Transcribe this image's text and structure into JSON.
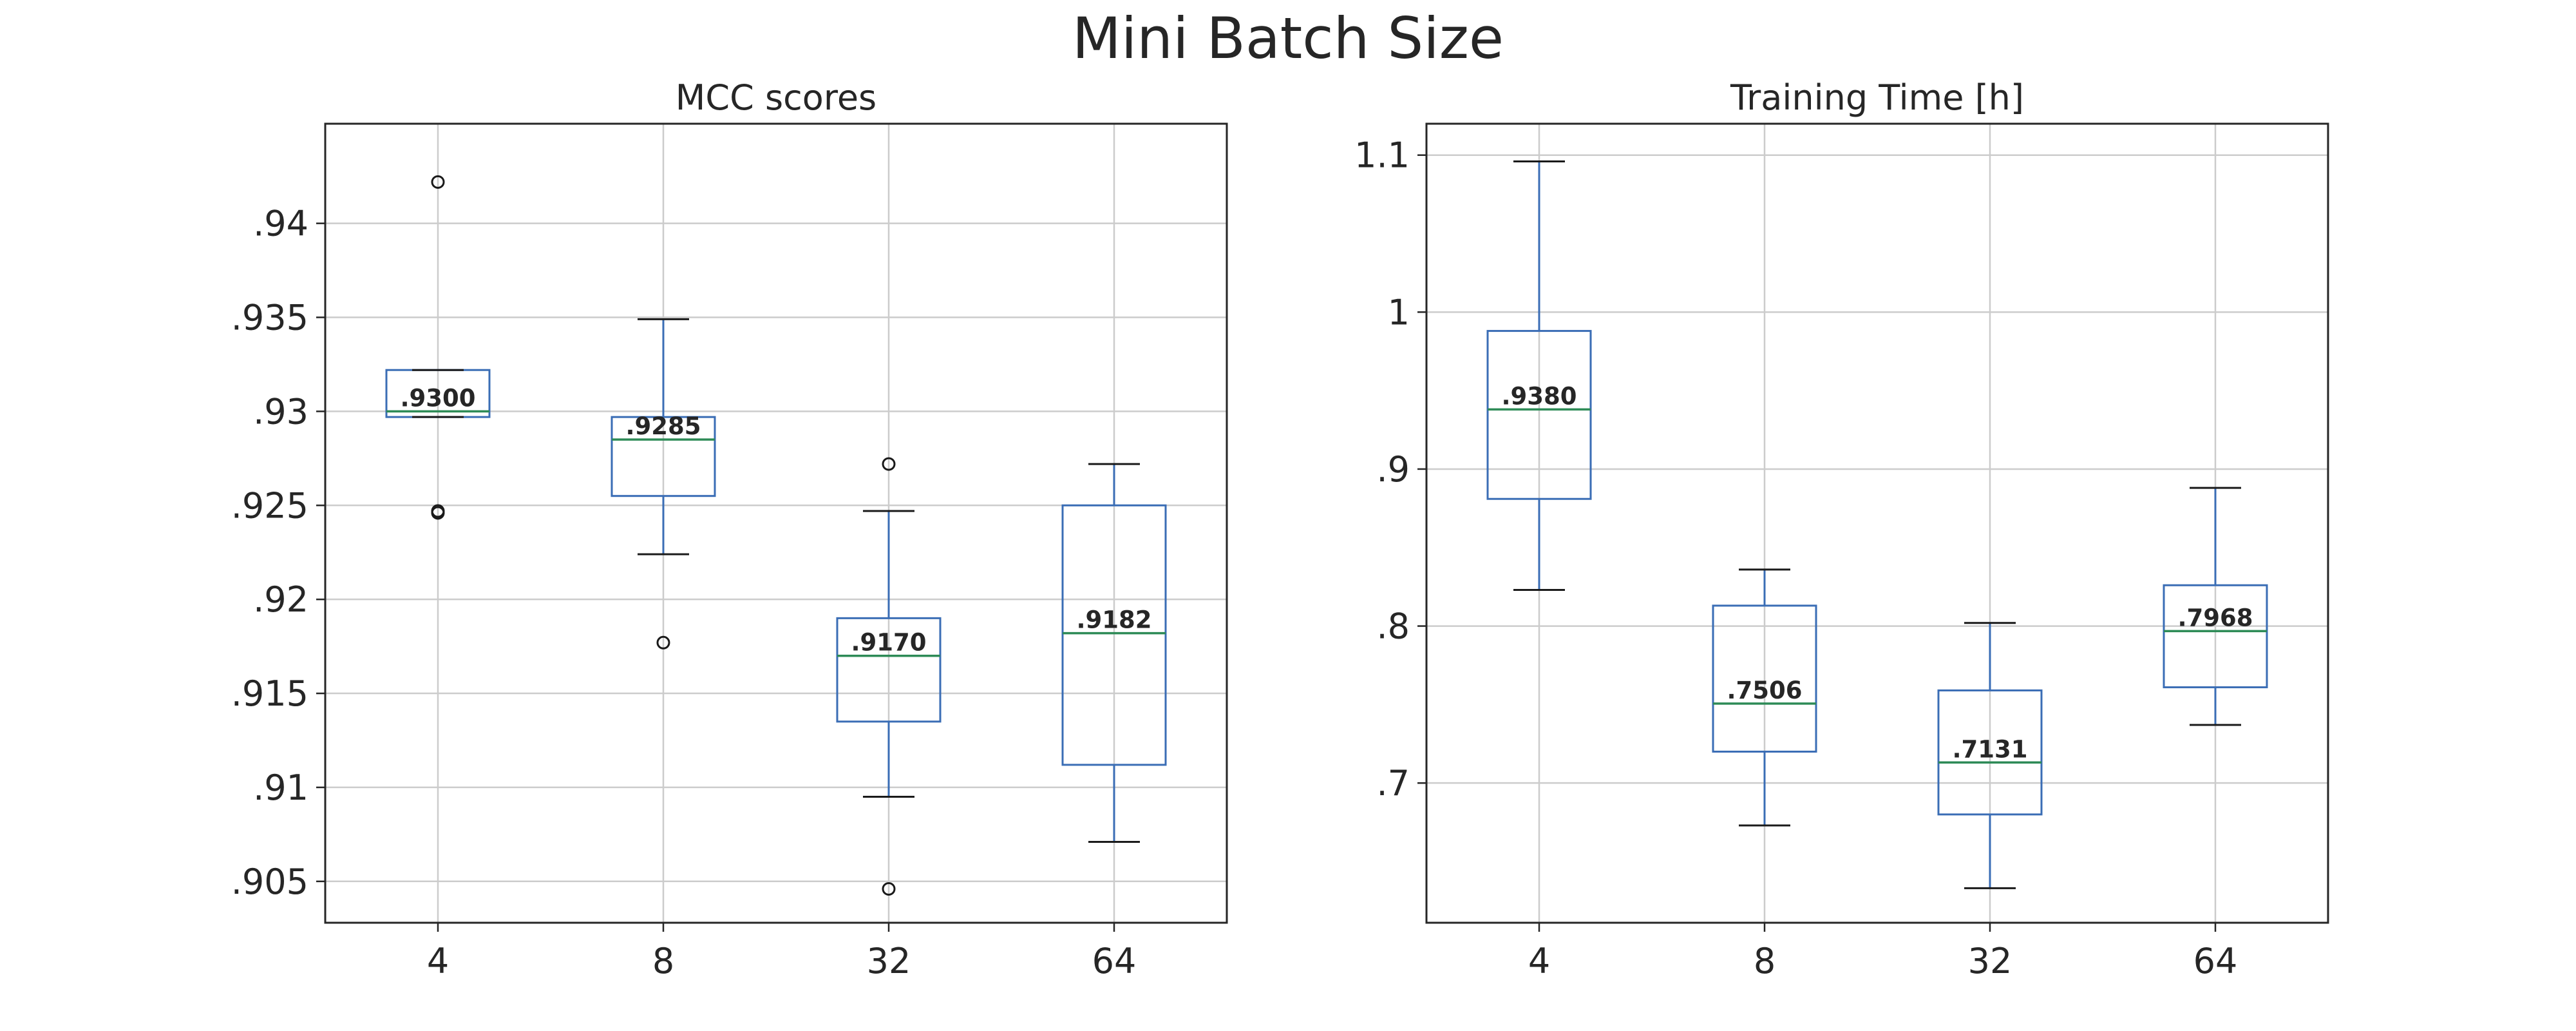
{
  "figure": {
    "title": "Mini Batch Size"
  },
  "chart_data": [
    {
      "type": "box",
      "title": "MCC scores",
      "xlabel": "",
      "ylabel": "",
      "categories": [
        "4",
        "8",
        "32",
        "64"
      ],
      "ylim": [
        0.9028,
        0.9453
      ],
      "yticks": [
        0.905,
        0.91,
        0.915,
        0.92,
        0.925,
        0.93,
        0.935,
        0.94
      ],
      "ytick_labels": [
        ".905",
        ".91",
        ".915",
        ".92",
        ".925",
        ".93",
        ".935",
        ".94"
      ],
      "grid": true,
      "boxes": [
        {
          "category": "4",
          "whisker_low": 0.9297,
          "q1": 0.9297,
          "median": 0.93,
          "q3": 0.9322,
          "whisker_high": 0.9322,
          "median_label": ".9300",
          "fliers": [
            0.9422,
            0.9247,
            0.9246
          ]
        },
        {
          "category": "8",
          "whisker_low": 0.9224,
          "q1": 0.9255,
          "median": 0.9285,
          "q3": 0.9297,
          "whisker_high": 0.9349,
          "median_label": ".9285",
          "fliers": [
            0.9177
          ]
        },
        {
          "category": "32",
          "whisker_low": 0.9095,
          "q1": 0.9135,
          "median": 0.917,
          "q3": 0.919,
          "whisker_high": 0.9247,
          "median_label": ".9170",
          "fliers": [
            0.9272,
            0.9046
          ]
        },
        {
          "category": "64",
          "whisker_low": 0.9071,
          "q1": 0.9112,
          "median": 0.9182,
          "q3": 0.925,
          "whisker_high": 0.9272,
          "median_label": ".9182",
          "fliers": []
        }
      ]
    },
    {
      "type": "box",
      "title": "Training Time [h]",
      "xlabel": "",
      "ylabel": "",
      "categories": [
        "4",
        "8",
        "32",
        "64"
      ],
      "ylim": [
        0.611,
        1.12
      ],
      "yticks": [
        0.7,
        0.8,
        0.9,
        1.0,
        1.1
      ],
      "ytick_labels": [
        ".7",
        ".8",
        ".9",
        "1",
        "1.1"
      ],
      "grid": true,
      "boxes": [
        {
          "category": "4",
          "whisker_low": 0.823,
          "q1": 0.881,
          "median": 0.938,
          "q3": 0.988,
          "whisker_high": 1.096,
          "median_label": ".9380",
          "fliers": []
        },
        {
          "category": "8",
          "whisker_low": 0.673,
          "q1": 0.72,
          "median": 0.7506,
          "q3": 0.813,
          "whisker_high": 0.836,
          "median_label": ".7506",
          "fliers": []
        },
        {
          "category": "32",
          "whisker_low": 0.633,
          "q1": 0.68,
          "median": 0.7131,
          "q3": 0.759,
          "whisker_high": 0.802,
          "median_label": ".7131",
          "fliers": []
        },
        {
          "category": "64",
          "whisker_low": 0.737,
          "q1": 0.761,
          "median": 0.7968,
          "q3": 0.826,
          "whisker_high": 0.888,
          "median_label": ".7968",
          "fliers": []
        }
      ]
    }
  ]
}
